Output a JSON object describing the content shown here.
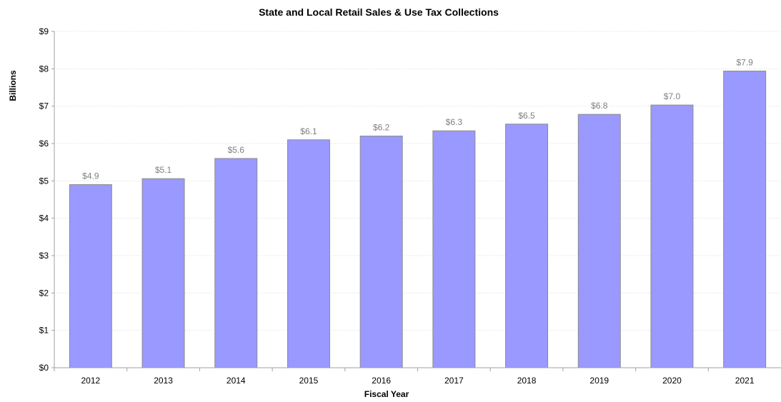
{
  "chart_data": {
    "type": "bar",
    "title": "State and Local Retail Sales & Use Tax Collections",
    "xlabel": "Fiscal Year",
    "ylabel": "Billions",
    "categories": [
      "2012",
      "2013",
      "2014",
      "2015",
      "2016",
      "2017",
      "2018",
      "2019",
      "2020",
      "2021"
    ],
    "values": [
      4.9,
      5.06,
      5.6,
      6.1,
      6.2,
      6.34,
      6.52,
      6.78,
      7.03,
      7.94
    ],
    "data_labels": [
      "$4.9",
      "$5.1",
      "$5.6",
      "$6.1",
      "$6.2",
      "$6.3",
      "$6.5",
      "$6.8",
      "$7.0",
      "$7.9"
    ],
    "ylim": [
      0,
      9
    ],
    "yticks": [
      0,
      1,
      2,
      3,
      4,
      5,
      6,
      7,
      8,
      9
    ],
    "ytick_labels": [
      "$0",
      "$1",
      "$2",
      "$3",
      "$4",
      "$5",
      "$6",
      "$7",
      "$8",
      "$9"
    ],
    "grid": true,
    "legend": "none",
    "bar_color": "#9999ff"
  }
}
